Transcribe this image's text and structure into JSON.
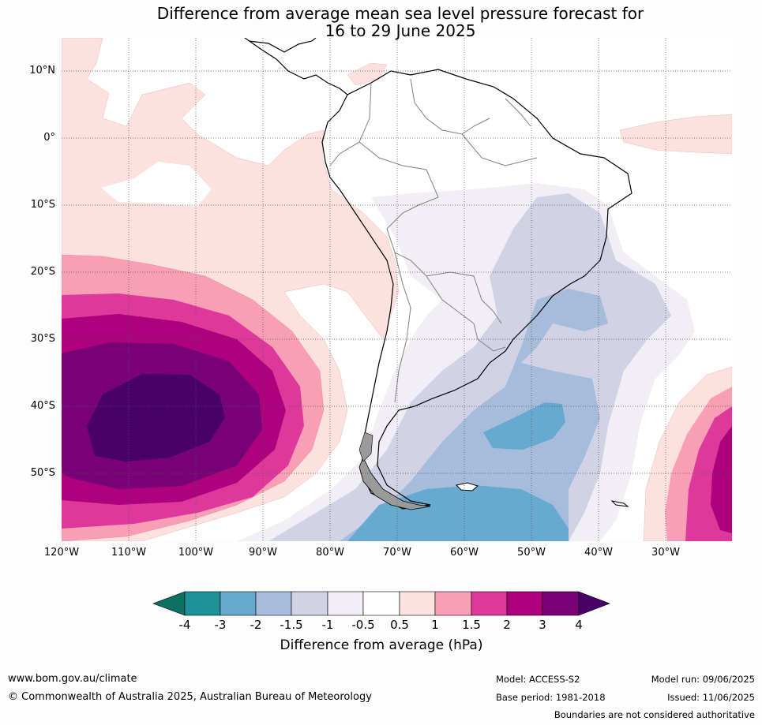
{
  "title": {
    "line1": "Difference from average mean sea level pressure forecast for",
    "line2": "16 to 29 June 2025"
  },
  "map": {
    "lat_labels": [
      "10°N",
      "0°",
      "10°S",
      "20°S",
      "30°S",
      "40°S",
      "50°S"
    ],
    "lon_labels": [
      "120°W",
      "110°W",
      "100°W",
      "90°W",
      "80°W",
      "70°W",
      "60°W",
      "50°W",
      "40°W",
      "30°W"
    ],
    "gridlines": "dotted",
    "region": "South America and surrounding Pacific and Atlantic oceans",
    "anomaly_features": [
      {
        "name": "high pressure anomaly",
        "location": "southeast Pacific",
        "peak": "above 4 hPa"
      },
      {
        "name": "high pressure anomaly",
        "location": "far southwest Atlantic (east edge)",
        "peak": "2 to 3 hPa"
      },
      {
        "name": "low pressure anomaly",
        "location": "southwest Atlantic / Southern Ocean",
        "peak": "-3 to -2 hPa"
      }
    ]
  },
  "colorbar": {
    "title": "Difference from average (hPa)",
    "labels": [
      "-4",
      "-3",
      "-2",
      "-1.5",
      "-1",
      "-0.5",
      "0.5",
      "1",
      "1.5",
      "2",
      "3",
      "4"
    ],
    "colors": [
      "#0c6f60",
      "#1f9199",
      "#66aacf",
      "#a6bcdb",
      "#d1d2e6",
      "#f1eef5",
      "#ffffff",
      "#fde1de",
      "#f99eb7",
      "#de399a",
      "#ad017e",
      "#790278",
      "#490069"
    ]
  },
  "footer": {
    "website": "www.bom.gov.au/climate",
    "copyright": "© Commonwealth of Australia 2025, Australian Bureau of Meteorology",
    "model": "Model: ACCESS-S2",
    "base_period": "Base period: 1981-2018",
    "model_run": "Model run: 09/06/2025",
    "issued": "Issued: 11/06/2025",
    "boundaries_note": "Boundaries are not considered authoritative"
  }
}
